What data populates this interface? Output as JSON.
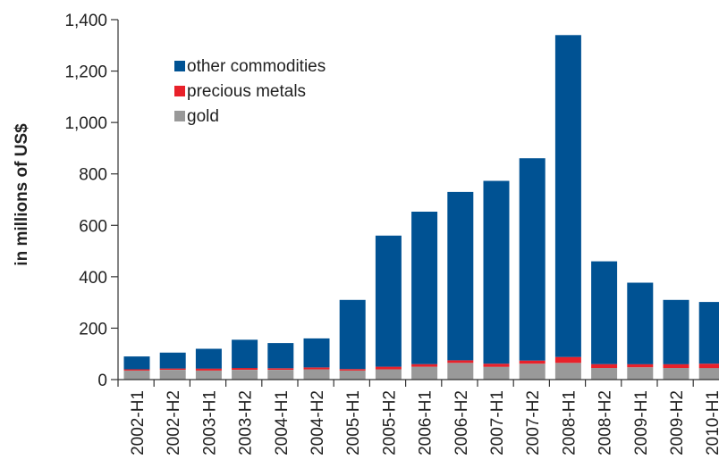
{
  "chart_data": {
    "type": "bar",
    "stacked": true,
    "title": "",
    "xlabel": "",
    "ylabel": "in millions of US$",
    "ylim": [
      0,
      1400
    ],
    "yticks": [
      0,
      200,
      400,
      600,
      800,
      1000,
      1200,
      1400
    ],
    "ytick_labels": [
      "0",
      "200",
      "400",
      "600",
      "800",
      "1,000",
      "1,200",
      "1,400"
    ],
    "categories": [
      "2002-H1",
      "2002-H2",
      "2003-H1",
      "2003-H2",
      "2004-H1",
      "2004-H2",
      "2005-H1",
      "2005-H2",
      "2006-H1",
      "2006-H2",
      "2007-H1",
      "2007-H2",
      "2008-H1",
      "2008-H2",
      "2009-H1",
      "2009-H2",
      "2010-H1"
    ],
    "series": [
      {
        "name": "gold",
        "color": "#999999",
        "values": [
          35,
          38,
          35,
          38,
          38,
          40,
          35,
          40,
          50,
          65,
          50,
          62,
          65,
          45,
          48,
          45,
          45
        ]
      },
      {
        "name": "precious metals",
        "color": "#e8212a",
        "values": [
          5,
          5,
          8,
          7,
          6,
          7,
          6,
          10,
          10,
          10,
          12,
          12,
          23,
          15,
          12,
          15,
          17
        ]
      },
      {
        "name": "other commodities",
        "color": "#005293",
        "values": [
          50,
          62,
          77,
          110,
          98,
          113,
          269,
          510,
          593,
          655,
          711,
          787,
          1252,
          400,
          317,
          250,
          240
        ]
      }
    ],
    "legend": {
      "placement": "top-left",
      "order": [
        "other commodities",
        "precious metals",
        "gold"
      ]
    },
    "grid": false
  }
}
